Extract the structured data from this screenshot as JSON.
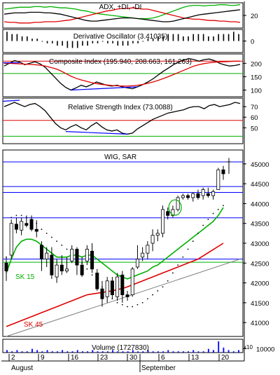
{
  "chart_data": {
    "type": "multi-panel technical chart",
    "x_axis": {
      "tick_labels": [
        "2",
        "9",
        "16",
        "23",
        "30",
        "6",
        "13",
        "20"
      ],
      "month_labels": [
        "August",
        "September"
      ]
    },
    "panels": [
      {
        "id": "adx",
        "title": "ADX, +DI, -DI",
        "type": "line",
        "ylim": [
          0,
          40
        ],
        "ticks": [
          "20"
        ],
        "series": [
          {
            "color": "#00b000",
            "values": [
              30,
              31,
              32,
              33,
              33,
              33,
              34,
              34,
              33,
              34,
              33,
              32,
              32,
              31,
              30,
              28,
              27,
              25,
              23,
              22,
              21,
              20,
              19,
              18,
              17,
              16,
              15,
              15,
              15,
              16,
              18,
              21,
              24,
              27,
              30,
              33,
              35,
              36,
              36,
              35,
              36,
              36,
              37,
              37,
              36,
              36,
              37
            ]
          },
          {
            "color": "#e00000",
            "values": [
              10,
              9,
              9,
              8,
              8,
              8,
              9,
              9,
              10,
              10,
              10,
              11,
              12,
              13,
              15,
              17,
              19,
              21,
              23,
              25,
              27,
              28,
              30,
              31,
              31,
              32,
              31,
              30,
              30,
              28,
              26,
              24,
              22,
              20,
              18,
              16,
              15,
              14,
              14,
              13,
              12,
              12,
              11,
              11,
              10,
              10,
              9
            ]
          },
          {
            "color": "#000000",
            "values": [
              22,
              23,
              24,
              24,
              24,
              25,
              25,
              25,
              24,
              24,
              23,
              22,
              20,
              18,
              16,
              14,
              12,
              11,
              11,
              12,
              13,
              14,
              15,
              16,
              16,
              16,
              15,
              14,
              13,
              12,
              11,
              10,
              10,
              11,
              13,
              15,
              17,
              19,
              21,
              22,
              23,
              24,
              25,
              26,
              27,
              28,
              29
            ]
          }
        ]
      },
      {
        "id": "dosc",
        "title": "Derivative Oscillator (3.41035)",
        "type": "histogram",
        "ylim": [
          -5,
          5
        ],
        "ticks": [
          "0"
        ],
        "values": [
          4,
          3,
          3,
          2,
          2,
          1,
          1,
          0,
          -1,
          -1,
          -2,
          -2,
          -3,
          -3,
          -3,
          -2,
          -2,
          -1,
          -1,
          0,
          -1,
          -1,
          -2,
          -2,
          -2,
          -1,
          -1,
          0,
          1,
          1,
          2,
          2,
          3,
          3,
          3,
          2,
          2,
          3,
          3,
          3,
          2,
          2,
          3,
          3,
          3,
          4,
          3
        ]
      },
      {
        "id": "ci",
        "title": "Composite Index (195.940, 208.663, 161.263)",
        "type": "line",
        "ylim": [
          75,
          235
        ],
        "ticks": [
          "100",
          "150",
          "200"
        ],
        "hlines": [
          {
            "value": 162,
            "color": "#00b000"
          },
          {
            "value": 208,
            "color": "#e00000"
          }
        ],
        "series": [
          {
            "color": "#000000",
            "values": [
              190,
              200,
              210,
              205,
              195,
              200,
              206,
              198,
              185,
              165,
              145,
              125,
              110,
              100,
              108,
              118,
              112,
              120,
              130,
              124,
              118,
              115,
              118,
              112,
              108,
              105,
              112,
              120,
              130,
              142,
              156,
              170,
              182,
              195,
              205,
              212,
              218,
              214,
              208,
              214,
              216,
              210,
              200,
              194,
              190,
              192,
              196
            ]
          },
          {
            "color": "#e00000",
            "values": [
              200,
              200,
              199,
              198,
              197,
              196,
              195,
              193,
              190,
              185,
              180,
              172,
              162,
              152,
              144,
              138,
              133,
              128,
              124,
              121,
              119,
              117,
              116,
              115,
              115,
              116,
              118,
              121,
              125,
              130,
              136,
              143,
              150,
              158,
              166,
              174,
              182,
              190,
              195,
              199,
              202,
              204,
              205,
              206,
              207,
              208,
              208
            ]
          }
        ],
        "trendline_color": "#0000ff"
      },
      {
        "id": "rsi",
        "title": "Relative Strength Index (73.0088)",
        "type": "line",
        "ylim": [
          35,
          78
        ],
        "ticks": [
          "50",
          "60",
          "70"
        ],
        "hlines": [
          {
            "value": 57,
            "color": "#e00000"
          },
          {
            "value": 42,
            "color": "#00b000"
          }
        ],
        "series": [
          {
            "color": "#000000",
            "values": [
              70,
              72,
              74,
              72,
              70,
              72,
              73,
              70,
              66,
              60,
              54,
              50,
              48,
              51,
              53,
              50,
              48,
              52,
              55,
              51,
              48,
              47,
              48,
              45,
              44,
              45,
              49,
              52,
              55,
              58,
              60,
              62,
              64,
              65,
              66,
              67,
              69,
              70,
              70,
              68,
              71,
              72,
              70,
              71,
              72,
              74,
              73
            ]
          }
        ],
        "trendline_color": "#0000ff"
      },
      {
        "id": "price",
        "title": "WIG, SAR",
        "type": "candlestick",
        "ylim": [
          40650,
          45350
        ],
        "ticks": [
          "41000",
          "41500",
          "42000",
          "42500",
          "43000",
          "43500",
          "44000",
          "44500",
          "45000"
        ],
        "hlines": [
          {
            "value": 45050,
            "color": "#0000ff"
          },
          {
            "value": 44430,
            "color": "#0000ff"
          },
          {
            "value": 44280,
            "color": "#0000ff"
          },
          {
            "value": 43640,
            "color": "#0000ff"
          },
          {
            "value": 42600,
            "color": "#0000ff"
          },
          {
            "value": 42520,
            "color": "#00b000"
          }
        ],
        "candles": [
          [
            42500,
            42650,
            42050,
            42300
          ],
          [
            42700,
            43600,
            42600,
            43500
          ],
          [
            43480,
            43650,
            43250,
            43350
          ],
          [
            43330,
            43650,
            43200,
            43550
          ],
          [
            43500,
            43700,
            43400,
            43450
          ],
          [
            43600,
            43700,
            43300,
            43350
          ],
          [
            43350,
            43580,
            43150,
            43300
          ],
          [
            42950,
            43050,
            42300,
            42600
          ],
          [
            42600,
            42900,
            42400,
            42750
          ],
          [
            42700,
            42900,
            42100,
            42200
          ],
          [
            42150,
            42600,
            42000,
            42450
          ],
          [
            42450,
            42700,
            42200,
            42300
          ],
          [
            42300,
            42650,
            42250,
            42350
          ],
          [
            42550,
            42950,
            42500,
            42850
          ],
          [
            42850,
            42900,
            42200,
            42450
          ],
          [
            42450,
            42650,
            42150,
            42200
          ],
          [
            42550,
            42950,
            42450,
            42850
          ],
          [
            42800,
            43000,
            42250,
            42350
          ],
          [
            42250,
            42350,
            41800,
            41850
          ],
          [
            41850,
            42050,
            41400,
            41600
          ],
          [
            41650,
            42150,
            41500,
            42050
          ],
          [
            42050,
            42150,
            41600,
            41700
          ],
          [
            41650,
            42250,
            41550,
            42150
          ],
          [
            42200,
            42300,
            41500,
            41700
          ],
          [
            41700,
            41800,
            41550,
            41650
          ],
          [
            41700,
            42400,
            41650,
            42350
          ],
          [
            42400,
            42950,
            42350,
            42600
          ],
          [
            42650,
            42900,
            42550,
            42750
          ],
          [
            42750,
            43050,
            42600,
            42950
          ],
          [
            43000,
            43350,
            42800,
            43200
          ],
          [
            43200,
            43350,
            43050,
            43250
          ],
          [
            43250,
            43950,
            43150,
            43850
          ],
          [
            43800,
            43900,
            43600,
            43700
          ],
          [
            43700,
            43950,
            43650,
            43850
          ],
          [
            43850,
            44200,
            43800,
            44150
          ],
          [
            44150,
            44250,
            44100,
            44200
          ],
          [
            44200,
            44250,
            44100,
            44150
          ],
          [
            44150,
            44280,
            44050,
            44250
          ],
          [
            44250,
            44350,
            44100,
            44150
          ],
          [
            44200,
            44400,
            44100,
            44350
          ],
          [
            44250,
            44400,
            44150,
            44200
          ],
          [
            44200,
            44350,
            44100,
            44300
          ],
          [
            44350,
            44900,
            44350,
            44850
          ],
          [
            44850,
            44950,
            44600,
            44750
          ]
        ],
        "sar_values": [
          42650,
          43650,
          43700,
          43700,
          43650,
          43600,
          43500,
          43350,
          43250,
          43150,
          43050,
          42950,
          42850,
          42700,
          42600,
          42500,
          42350,
          42200,
          42050,
          41900,
          41750,
          41600,
          41500,
          41450,
          41400,
          41400,
          41450,
          41500,
          41600,
          41700,
          41800,
          41900,
          42050,
          42250,
          42450,
          42650,
          42850,
          43050,
          43250,
          43450,
          43600,
          43750,
          43850,
          43950
        ],
        "series": [
          {
            "name": "SK 15",
            "color": "#00b000",
            "values": [
              42250,
              42600,
              42900,
              43050,
              43100,
              43100,
              43050,
              42950,
              42850,
              42750,
              42650,
              42650,
              42650,
              42700,
              42700,
              42650,
              42700,
              42700,
              42600,
              42500,
              42400,
              42300,
              42200,
              42150,
              42100,
              42150,
              42200,
              42250,
              42300,
              42400,
              42450,
              42550,
              42650,
              42750,
              42850,
              42950,
              43050,
              43150,
              43250,
              43350,
              43450,
              43550,
              43700,
              43900
            ]
          },
          {
            "name": "SK 45",
            "color": "#e00000",
            "values": [
              40900,
              40950,
              41000,
              41050,
              41100,
              41150,
              41200,
              41250,
              41300,
              41350,
              41400,
              41450,
              41500,
              41550,
              41600,
              41650,
              41700,
              41720,
              41740,
              41760,
              41780,
              41800,
              41830,
              41860,
              41900,
              41950,
              42000,
              42050,
              42100,
              42150,
              42200,
              42250,
              42300,
              42350,
              42400,
              42450,
              42500,
              42550,
              42600,
              42680,
              42760,
              42840,
              42920,
              43000
            ]
          }
        ],
        "support_line": {
          "from": [
            0,
            40650
          ],
          "to": [
            43,
            42450
          ]
        },
        "highlight_circle": {
          "candle_index": 34,
          "value": 43900
        }
      },
      {
        "id": "volume",
        "title": "Volume (1727830)",
        "type": "histogram",
        "unit_label": "x10",
        "ticks": [
          "10000"
        ],
        "values": [
          2,
          1,
          2,
          1,
          1,
          3,
          2,
          1,
          2,
          1,
          1,
          2,
          1,
          1,
          2,
          1,
          1,
          2,
          1,
          1,
          1,
          2,
          1,
          1,
          1,
          2,
          1,
          1,
          2,
          1,
          1,
          1,
          2,
          1,
          1,
          1,
          1,
          2,
          1,
          1,
          3,
          2,
          9,
          4,
          2,
          1,
          2
        ]
      }
    ],
    "annotations": [
      "SK 15",
      "SK 45"
    ]
  }
}
